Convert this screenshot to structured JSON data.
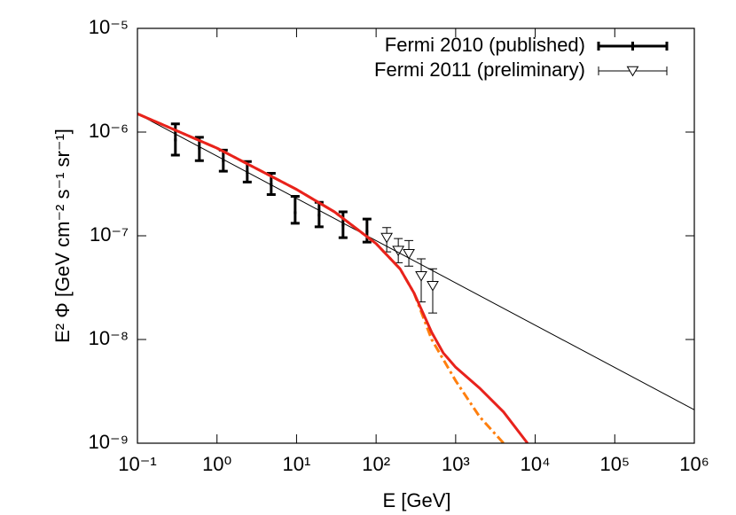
{
  "chart_data": {
    "type": "line",
    "log_x": true,
    "log_y": true,
    "xlabel": "E [GeV]",
    "ylabel": "E² Φ [GeV cm⁻² s⁻¹ sr⁻¹]",
    "xlim": [
      0.1,
      1000000
    ],
    "ylim": [
      1e-09,
      1e-05
    ],
    "xticks": [
      {
        "value": 0.1,
        "label": "10⁻¹"
      },
      {
        "value": 1,
        "label": "10⁰"
      },
      {
        "value": 10,
        "label": "10¹"
      },
      {
        "value": 100,
        "label": "10²"
      },
      {
        "value": 1000,
        "label": "10³"
      },
      {
        "value": 10000,
        "label": "10⁴"
      },
      {
        "value": 100000,
        "label": "10⁵"
      },
      {
        "value": 1000000,
        "label": "10⁶"
      }
    ],
    "yticks": [
      {
        "value": 1e-09,
        "label": "10⁻⁹"
      },
      {
        "value": 1e-08,
        "label": "10⁻⁸"
      },
      {
        "value": 1e-07,
        "label": "10⁻⁷"
      },
      {
        "value": 1e-06,
        "label": "10⁻⁶"
      },
      {
        "value": 1e-05,
        "label": "10⁻⁵"
      }
    ],
    "legend": "upper right",
    "series": [
      {
        "name": "Fermi 2010 (published)",
        "color": "#000000",
        "kind": "errorbar",
        "width": 3,
        "x": [
          0.3,
          0.6,
          1.2,
          2.4,
          4.8,
          9.6,
          19.2,
          38.4,
          76.8
        ],
        "values": [
          8.4e-07,
          7e-07,
          5.3e-07,
          4.1e-07,
          3.1e-07,
          1.67e-07,
          1.58e-07,
          1.27e-07,
          1.1e-07
        ],
        "ylow": [
          6e-07,
          5.3e-07,
          4.2e-07,
          3.3e-07,
          2.5e-07,
          1.32e-07,
          1.22e-07,
          9.6e-08,
          8.7e-08
        ],
        "yhigh": [
          1.2e-06,
          8.9e-07,
          6.7e-07,
          5.2e-07,
          4e-07,
          2.4e-07,
          2.1e-07,
          1.7e-07,
          1.45e-07
        ]
      },
      {
        "name": "Fermi 2011 (preliminary)",
        "color": "#000000",
        "kind": "errorbar",
        "marker": "triangle-down",
        "width": 1,
        "x": [
          136,
          190,
          258,
          369,
          515
        ],
        "values": [
          9.6e-08,
          7.2e-08,
          6.7e-08,
          4.1e-08,
          3.3e-08
        ],
        "ylow": [
          7e-08,
          5.5e-08,
          5.1e-08,
          2.3e-08,
          1.8e-08
        ],
        "yhigh": [
          1.2e-07,
          9.4e-08,
          9e-08,
          6e-08,
          4.8e-08
        ]
      },
      {
        "color": "#000000",
        "kind": "line",
        "width": 1,
        "x": [
          0.1,
          1000000
        ],
        "values": [
          1.5e-06,
          2.1e-09
        ]
      },
      {
        "color": "#ff7f0e",
        "kind": "line",
        "dash": "dashdot",
        "width": 3,
        "x": [
          0.1,
          1,
          10,
          30,
          100,
          200,
          300,
          500,
          1000,
          2000,
          4000
        ],
        "values": [
          1.5e-06,
          7e-07,
          2.8e-07,
          1.7e-07,
          8.4e-08,
          4.8e-08,
          2.8e-08,
          1e-08,
          4e-09,
          1.8e-09,
          1e-09
        ]
      },
      {
        "color": "#e8221c",
        "kind": "line",
        "width": 3,
        "x": [
          0.1,
          1,
          10,
          30,
          100,
          200,
          300,
          500,
          700,
          1000,
          2000,
          4000,
          8000
        ],
        "values": [
          1.5e-06,
          7e-07,
          2.8e-07,
          1.7e-07,
          8.4e-08,
          4.8e-08,
          2.8e-08,
          1.17e-08,
          7.4e-09,
          5.4e-09,
          3.4e-09,
          2e-09,
          1e-09
        ]
      }
    ]
  }
}
